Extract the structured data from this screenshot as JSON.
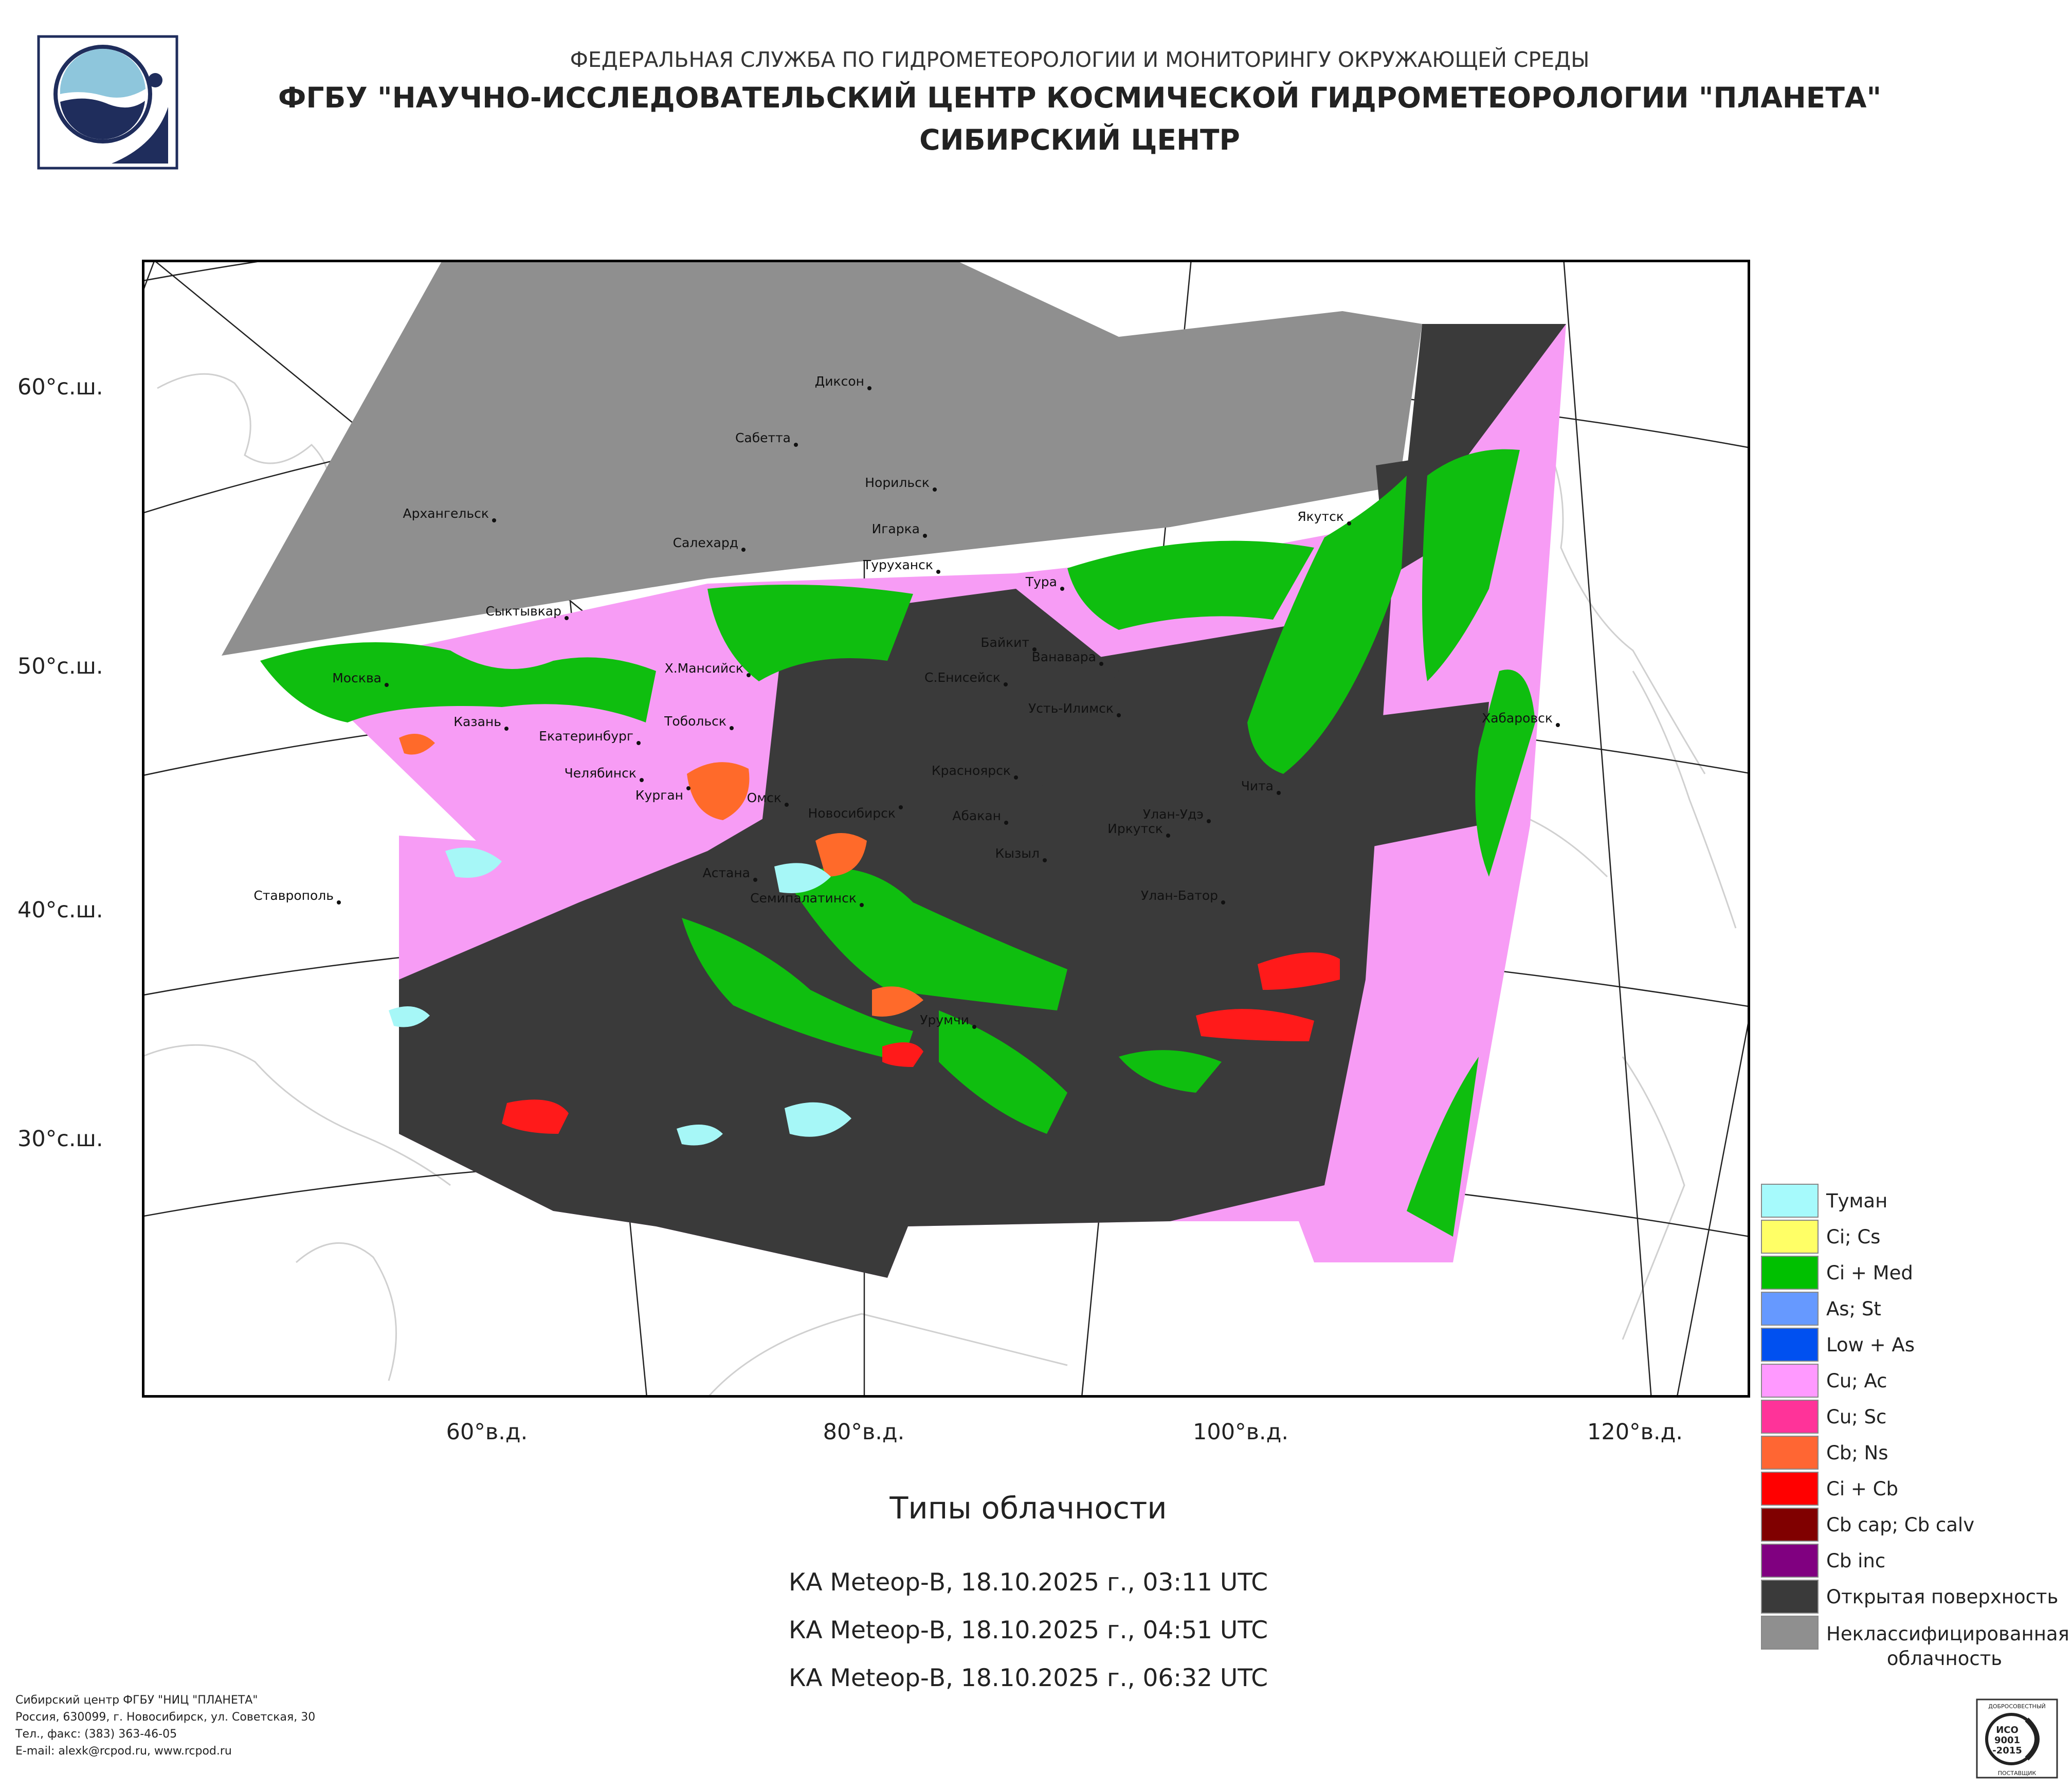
{
  "header": {
    "org": "ФЕДЕРАЛЬНАЯ СЛУЖБА ПО ГИДРОМЕТЕОРОЛОГИИ И МОНИТОРИНГУ ОКРУЖАЮЩЕЙ СРЕДЫ",
    "institute": "ФГБУ \"НАУЧНО-ИССЛЕДОВАТЕЛЬСКИЙ ЦЕНТР КОСМИЧЕСКОЙ ГИДРОМЕТЕОРОЛОГИИ \"ПЛАНЕТА\"",
    "center": "СИБИРСКИЙ ЦЕНТР"
  },
  "map": {
    "lat_labels": [
      "60°с.ш.",
      "50°с.ш.",
      "40°с.ш.",
      "30°с.ш."
    ],
    "lon_labels": [
      "60°в.д.",
      "80°в.д.",
      "100°в.д.",
      "120°в.д."
    ],
    "cities": [
      "Диксон",
      "Сабетта",
      "Норильск",
      "Архангельск",
      "Салехард",
      "Игарка",
      "Туруханск",
      "Якутск",
      "Тура",
      "Сыктывкар",
      "Байкит",
      "Ванавара",
      "Москва",
      "Х.Мансийск",
      "С.Енисейск",
      "Усть-Илимск",
      "Казань",
      "Тобольск",
      "Екатеринбург",
      "Хабаровск",
      "Челябинск",
      "Курган",
      "Красноярск",
      "Омск",
      "Новосибирск",
      "Чита",
      "Абакан",
      "Улан-Удэ",
      "Иркутск",
      "Кызыл",
      "Астана",
      "Ставрополь",
      "Семипалатинск",
      "Улан-Батор",
      "Урумчи"
    ],
    "colors": {
      "unclassified": "#8f8f8f",
      "open_surface": "#3a3a3a",
      "cu_ac": "#f79cf5",
      "ci_med": "#0fbe0f",
      "cb_ns": "#ff6a2a",
      "ci_cb": "#ff1a1a",
      "fog": "#a6f7f7"
    }
  },
  "title": "Типы облачности",
  "passes": [
    "КА Meteор-В, 18.10.2025 г., 03:11 UTC",
    "КА Meteор-В, 18.10.2025 г., 04:51 UTC",
    "КА Meteор-В, 18.10.2025 г., 06:32 UTC"
  ],
  "legend": [
    {
      "label": "Туман",
      "color": "#a6fafc"
    },
    {
      "label": "Ci; Cs",
      "color": "#ffff66"
    },
    {
      "label": "Ci + Med",
      "color": "#00c000"
    },
    {
      "label": "As; St",
      "color": "#6699ff"
    },
    {
      "label": "Low + As",
      "color": "#0050f0"
    },
    {
      "label": "Cu; Ac",
      "color": "#ff99ff"
    },
    {
      "label": "Cu; Sc",
      "color": "#ff3399"
    },
    {
      "label": "Cb; Ns",
      "color": "#ff6633"
    },
    {
      "label": "Ci + Cb",
      "color": "#ff0000"
    },
    {
      "label": "Cb cap; Cb calv",
      "color": "#800000"
    },
    {
      "label": "Cb inc",
      "color": "#800080"
    },
    {
      "label": "Открытая поверхность",
      "color": "#3a3a3a"
    },
    {
      "label": "Неклассифицированная облачность",
      "color": "#8f8f8f"
    }
  ],
  "footer": {
    "line1": "Сибирский центр ФГБУ \"НИЦ \"ПЛАНЕТА\"",
    "line2": "Россия, 630099, г. Новосибирск, ул. Советская, 30",
    "line3": "Тел., факс: (383) 363-46-05",
    "line4": "E-mail: alexk@rcpod.ru, www.rcpod.ru"
  },
  "iso": {
    "top": "ДОБРОСОВЕСТНЫЙ",
    "line1": "ИСО",
    "line2": "9001",
    "line3": "-2015",
    "bottom": "ПОСТАВЩИК"
  }
}
